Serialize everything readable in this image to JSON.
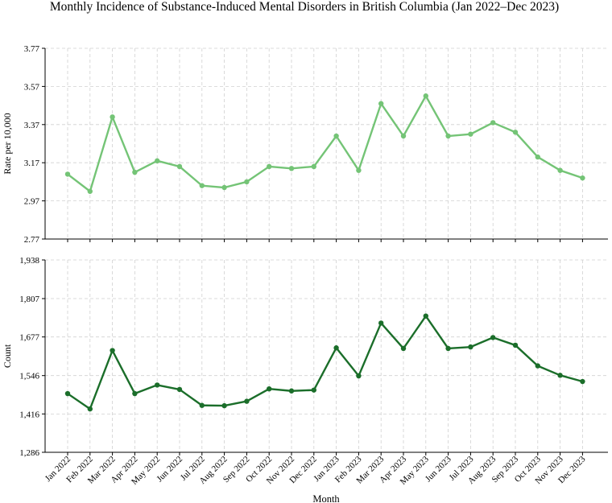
{
  "title": "Monthly Incidence of Substance-Induced Mental Disorders in British Columbia (Jan 2022–Dec 2023)",
  "xlabel": "Month",
  "chart_data": {
    "type": "line",
    "title": "Monthly Incidence of Substance-Induced Mental Disorders in British Columbia (Jan 2022–Dec 2023)",
    "xlabel": "Month",
    "categories": [
      "Jan 2022",
      "Feb 2022",
      "Mar 2022",
      "Apr 2022",
      "May 2022",
      "Jun 2022",
      "Jul 2022",
      "Aug 2022",
      "Sep 2022",
      "Oct 2022",
      "Nov 2022",
      "Dec 2022",
      "Jan 2023",
      "Feb 2023",
      "Mar 2023",
      "Apr 2023",
      "May 2023",
      "Jun 2023",
      "Jul 2023",
      "Aug 2023",
      "Sep 2023",
      "Oct 2023",
      "Nov 2023",
      "Dec 2023"
    ],
    "panels": [
      {
        "ylabel": "Rate per 10,000",
        "ylim": [
          2.77,
          3.77
        ],
        "yticks": [
          "2.77",
          "2.97",
          "3.17",
          "3.37",
          "3.57",
          "3.77"
        ],
        "tick_values": [
          2.77,
          2.97,
          3.17,
          3.37,
          3.57,
          3.77
        ],
        "color": "#74c476",
        "grid": true,
        "values": [
          3.11,
          3.02,
          3.41,
          3.12,
          3.18,
          3.15,
          3.05,
          3.04,
          3.07,
          3.15,
          3.14,
          3.15,
          3.31,
          3.13,
          3.48,
          3.31,
          3.52,
          3.31,
          3.32,
          3.38,
          3.33,
          3.2,
          3.13,
          3.09
        ]
      },
      {
        "ylabel": "Count",
        "ylim": [
          1286,
          1938
        ],
        "yticks": [
          "1,286",
          "1,416",
          "1,546",
          "1,677",
          "1,807",
          "1,938"
        ],
        "tick_values": [
          1286,
          1416,
          1546,
          1677,
          1807,
          1938
        ],
        "color": "#1b6e2a",
        "grid": true,
        "values": [
          1485,
          1433,
          1631,
          1485,
          1514,
          1499,
          1445,
          1444,
          1459,
          1501,
          1494,
          1497,
          1640,
          1545,
          1724,
          1638,
          1748,
          1638,
          1643,
          1675,
          1649,
          1579,
          1547,
          1526
        ]
      }
    ]
  }
}
